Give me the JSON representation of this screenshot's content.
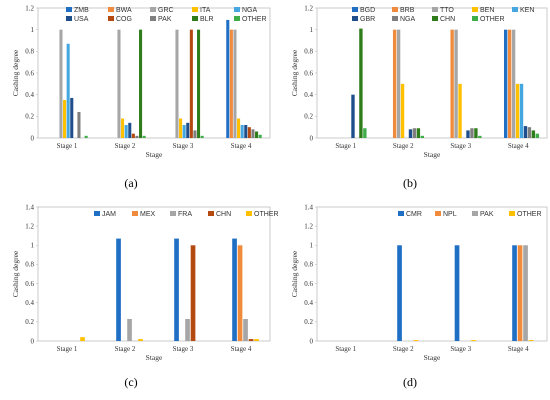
{
  "figure": {
    "background": "#ffffff"
  },
  "colors": {
    "ZMB": "#1f6fc5",
    "BWA": "#f08a3c",
    "GRC": "#a6a6a6",
    "ITA": "#ffc000",
    "NGA": "#44a7e0",
    "USA": "#1f4e8c",
    "COG": "#b44a10",
    "PAK": "#7f7f7f",
    "BLR": "#2e7d1a",
    "OTHER": "#3fae49",
    "BGD": "#1f6fc5",
    "BRB": "#f08a3c",
    "TTO": "#a6a6a6",
    "BEN": "#ffc000",
    "KEN": "#44a7e0",
    "GBR": "#1f4e8c",
    "CHN": "#b44a10",
    "JAM": "#1f6fc5",
    "MEX": "#f08a3c",
    "FRA": "#a6a6a6",
    "CMR": "#1f6fc5",
    "NPL": "#f08a3c"
  },
  "chart_data": [
    {
      "panel": "(a)",
      "type": "bar",
      "xlabel": "Stage",
      "ylabel": "Cashing degree",
      "ylim": [
        0,
        1.2
      ],
      "yticks": [
        "0",
        "0.2",
        "0.4",
        "0.6",
        "0.8",
        "1",
        "1.2"
      ],
      "grid": false,
      "legend_position": "top",
      "legend_cols": 5,
      "categories": [
        "Stage 1",
        "Stage 2",
        "Stage 3",
        "Stage 4"
      ],
      "series": [
        {
          "name": "ZMB",
          "color_key": "ZMB",
          "values": [
            0,
            0,
            0,
            1.09
          ]
        },
        {
          "name": "BWA",
          "color_key": "BWA",
          "values": [
            0,
            0,
            0,
            1.0
          ]
        },
        {
          "name": "GRC",
          "color_key": "GRC",
          "values": [
            1.0,
            1.0,
            1.0,
            1.0
          ]
        },
        {
          "name": "ITA",
          "color_key": "ITA",
          "values": [
            0.35,
            0.18,
            0.18,
            0.18
          ]
        },
        {
          "name": "NGA",
          "color_key": "NGA",
          "values": [
            0.87,
            0.12,
            0.12,
            0.12
          ]
        },
        {
          "name": "USA",
          "color_key": "USA",
          "values": [
            0.37,
            0.14,
            0.14,
            0.12
          ]
        },
        {
          "name": "COG",
          "color_key": "COG",
          "values": [
            0,
            0.04,
            1.0,
            0.1
          ]
        },
        {
          "name": "PAK",
          "color_key": "PAK",
          "values": [
            0.24,
            0.02,
            0.07,
            0.08
          ]
        },
        {
          "name": "BLR",
          "color_key": "BLR",
          "values": [
            0,
            1.0,
            1.0,
            0.06
          ]
        },
        {
          "name": "OTHER",
          "color_key": "OTHER",
          "values": [
            0.02,
            0.02,
            0.02,
            0.03
          ]
        }
      ]
    },
    {
      "panel": "(b)",
      "type": "bar",
      "xlabel": "Stage",
      "ylabel": "Cashing degree",
      "ylim": [
        0,
        1.2
      ],
      "yticks": [
        "0",
        "0.2",
        "0.4",
        "0.6",
        "0.8",
        "1",
        "1.2"
      ],
      "grid": false,
      "legend_position": "top",
      "legend_cols": 5,
      "categories": [
        "Stage 1",
        "Stage 2",
        "Stage 3",
        "Stage 4"
      ],
      "series": [
        {
          "name": "BGD",
          "color_key": "BGD",
          "values": [
            0,
            0,
            0,
            1.0
          ]
        },
        {
          "name": "BRB",
          "color_key": "BRB",
          "values": [
            0,
            1.0,
            1.0,
            1.0
          ]
        },
        {
          "name": "TTO",
          "color_key": "TTO",
          "values": [
            0,
            1.0,
            1.0,
            1.0
          ]
        },
        {
          "name": "BEN",
          "color_key": "BEN",
          "values": [
            0,
            0.5,
            0.5,
            0.5
          ]
        },
        {
          "name": "KEN",
          "color_key": "KEN",
          "values": [
            0,
            0,
            0,
            0.5
          ]
        },
        {
          "name": "GBR",
          "color_key": "GBR",
          "values": [
            0.4,
            0.08,
            0.07,
            0.11
          ]
        },
        {
          "name": "NGA",
          "color_key": "PAK",
          "values": [
            0,
            0.09,
            0.09,
            0.1
          ]
        },
        {
          "name": "CHN",
          "color_key": "BLR",
          "values": [
            1.01,
            0.09,
            0.09,
            0.07
          ]
        },
        {
          "name": "OTHER",
          "color_key": "OTHER",
          "values": [
            0.09,
            0.02,
            0.02,
            0.04
          ]
        }
      ]
    },
    {
      "panel": "(c)",
      "type": "bar",
      "xlabel": "Stage",
      "ylabel": "Cashing degree",
      "ylim": [
        0,
        1.4
      ],
      "yticks": [
        "0",
        "0.2",
        "0.4",
        "0.6",
        "0.8",
        "1",
        "1.2",
        "1.4"
      ],
      "grid": false,
      "legend_position": "top-right",
      "legend_cols": 5,
      "categories": [
        "Stage 1",
        "Stage 2",
        "Stage 3",
        "Stage 4"
      ],
      "series": [
        {
          "name": "JAM",
          "color_key": "JAM",
          "values": [
            0,
            1.07,
            1.07,
            1.07
          ]
        },
        {
          "name": "MEX",
          "color_key": "MEX",
          "values": [
            0,
            0,
            0,
            1.0
          ]
        },
        {
          "name": "FRA",
          "color_key": "FRA",
          "values": [
            0,
            0.23,
            0.23,
            0.23
          ]
        },
        {
          "name": "CHN",
          "color_key": "CHN",
          "values": [
            0,
            0,
            1.0,
            0.02
          ]
        },
        {
          "name": "OTHER",
          "color_key": "ITA",
          "values": [
            0.04,
            0.02,
            0.0,
            0.02
          ]
        }
      ]
    },
    {
      "panel": "(d)",
      "type": "bar",
      "xlabel": "Stage",
      "ylabel": "Cashing degree",
      "ylim": [
        0,
        1.4
      ],
      "yticks": [
        "0",
        "0.2",
        "0.4",
        "0.6",
        "0.8",
        "1",
        "1.2",
        "1.4"
      ],
      "grid": false,
      "legend_position": "top-right",
      "legend_cols": 4,
      "categories": [
        "Stage 1",
        "Stage 2",
        "Stage 3",
        "Stage 4"
      ],
      "series": [
        {
          "name": "CMR",
          "color_key": "CMR",
          "values": [
            0,
            1.0,
            1.0,
            1.0
          ]
        },
        {
          "name": "NPL",
          "color_key": "NPL",
          "values": [
            0,
            0,
            0,
            1.0
          ]
        },
        {
          "name": "PAK",
          "color_key": "GRC",
          "values": [
            0,
            0,
            0,
            1.0
          ]
        },
        {
          "name": "OTHER",
          "color_key": "ITA",
          "values": [
            0,
            0.01,
            0.01,
            0.01
          ]
        }
      ]
    }
  ]
}
